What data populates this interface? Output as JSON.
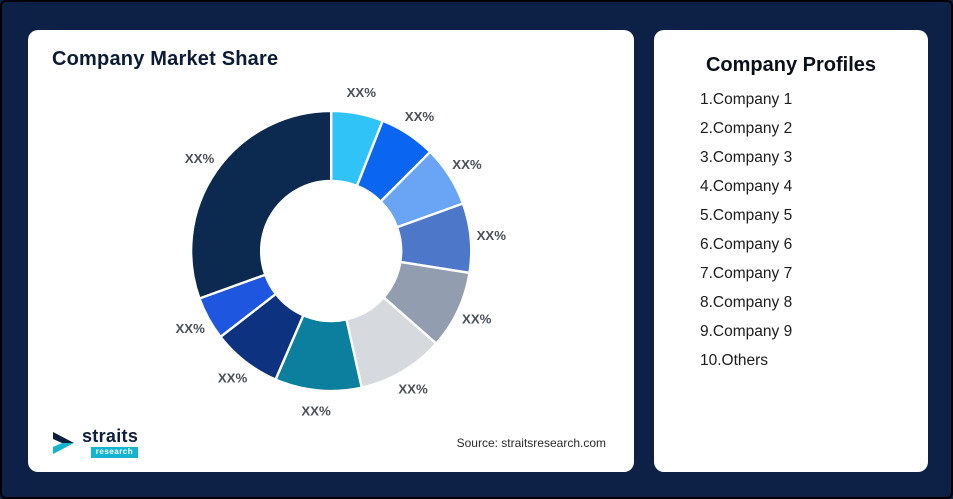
{
  "chart_data": {
    "type": "pie",
    "subtype": "donut",
    "title": "Company Market Share",
    "legend_position": "none",
    "labels_masked": true,
    "values_estimated": true,
    "segments": [
      {
        "name": "Company 1",
        "label": "XX%",
        "value": 6,
        "color": "#2fc3f7"
      },
      {
        "name": "Company 2",
        "label": "XX%",
        "value": 6.5,
        "color": "#0a66f0"
      },
      {
        "name": "Company 3",
        "label": "XX%",
        "value": 7,
        "color": "#69a4f5"
      },
      {
        "name": "Company 4",
        "label": "XX%",
        "value": 8,
        "color": "#4d78c9"
      },
      {
        "name": "Company 5",
        "label": "XX%",
        "value": 9,
        "color": "#939db0"
      },
      {
        "name": "Company 6",
        "label": "XX%",
        "value": 10,
        "color": "#d6dade"
      },
      {
        "name": "Company 7",
        "label": "XX%",
        "value": 10,
        "color": "#0b7f9d"
      },
      {
        "name": "Company 8",
        "label": "XX%",
        "value": 8,
        "color": "#0d3380"
      },
      {
        "name": "Company 9",
        "label": "XX%",
        "value": 5,
        "color": "#1e56e0"
      },
      {
        "name": "Others",
        "label": "XX%",
        "value": 30.5,
        "color": "#0c2950"
      }
    ]
  },
  "profiles": {
    "title": "Company Profiles",
    "items": [
      "1.Company 1",
      "2.Company 2",
      "3.Company 3",
      "4.Company 4",
      "5.Company 5",
      "6.Company 6",
      "7.Company 7",
      "8.Company 8",
      "9.Company 9",
      "10.Others"
    ]
  },
  "logo": {
    "brand": "straits",
    "sub": "research"
  },
  "source": "Source: straitsresearch.com",
  "colors": {
    "background": "#0d2045",
    "accent_teal": "#14b4d1",
    "navy": "#0c1f3e"
  }
}
